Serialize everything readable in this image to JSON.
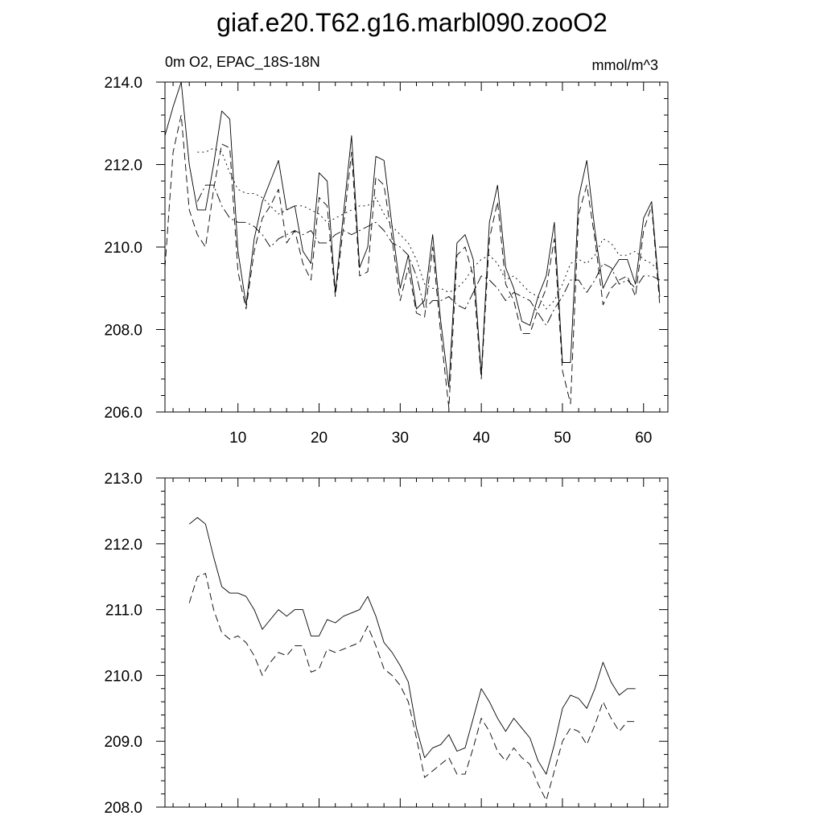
{
  "title": "giaf.e20.T62.g16.marbl090.zooO2",
  "chart_data": [
    {
      "type": "line",
      "left_label": "0m O2, EPAC_18S-18N",
      "right_label": "mmol/m^3",
      "xlim": [
        1,
        63
      ],
      "ylim": [
        206,
        214
      ],
      "xticks": [
        10,
        20,
        30,
        40,
        50,
        60
      ],
      "xtick_labels": [
        "10",
        "20",
        "30",
        "40",
        "50",
        "60"
      ],
      "yticks": [
        206,
        208,
        210,
        212,
        214
      ],
      "ytick_labels": [
        "206.0",
        "208.0",
        "210.0",
        "212.0",
        "214.0"
      ],
      "x_start": 1,
      "series": [
        {
          "dash": "solid",
          "values": [
            212.7,
            213.4,
            214.0,
            212.0,
            210.9,
            210.9,
            212.0,
            213.3,
            213.1,
            209.9,
            208.6,
            210.2,
            211.1,
            211.6,
            212.1,
            210.9,
            211.0,
            209.9,
            209.6,
            211.8,
            211.6,
            208.9,
            210.8,
            212.7,
            209.5,
            210.0,
            212.2,
            212.1,
            210.5,
            209.0,
            209.8,
            208.5,
            208.7,
            210.3,
            208.2,
            206.6,
            210.1,
            210.3,
            209.7,
            206.9,
            210.6,
            211.5,
            209.5,
            209.0,
            208.2,
            208.1,
            208.8,
            209.3,
            210.6,
            207.2,
            207.2,
            211.2,
            212.1,
            210.4,
            209.0,
            209.4,
            209.7,
            209.7,
            209.1,
            210.7,
            211.1,
            208.8
          ]
        },
        {
          "dash": "longdash",
          "values": [
            209.5,
            212.3,
            213.2,
            210.9,
            210.3,
            210.0,
            211.4,
            212.5,
            212.4,
            209.4,
            208.5,
            209.9,
            210.7,
            211.0,
            211.4,
            210.1,
            210.4,
            209.6,
            209.2,
            211.2,
            211.0,
            208.8,
            210.5,
            212.3,
            209.3,
            209.4,
            211.7,
            211.5,
            210.2,
            208.7,
            209.5,
            208.4,
            208.3,
            210.0,
            207.9,
            206.1,
            209.8,
            210.0,
            209.3,
            206.8,
            210.2,
            211.1,
            209.1,
            208.7,
            207.9,
            207.9,
            208.5,
            209.0,
            210.2,
            207.0,
            206.2,
            210.8,
            211.5,
            210.2,
            208.6,
            209.0,
            209.2,
            209.3,
            208.8,
            210.4,
            211.0,
            208.6
          ]
        },
        {
          "dash": "dashdot",
          "values": [
            null,
            null,
            null,
            null,
            211.1,
            211.5,
            211.5,
            211.0,
            210.7,
            210.6,
            210.6,
            210.5,
            210.3,
            210.0,
            210.2,
            210.3,
            210.4,
            210.3,
            210.4,
            210.1,
            210.1,
            210.3,
            210.4,
            210.3,
            210.4,
            210.5,
            210.6,
            210.4,
            210.1,
            210.0,
            209.8,
            209.3,
            208.5,
            208.7,
            208.7,
            208.8,
            208.6,
            208.5,
            208.9,
            209.3,
            209.2,
            209.0,
            208.7,
            208.9,
            208.8,
            208.7,
            208.4,
            208.1,
            208.5,
            208.8,
            209.2,
            209.2,
            208.9,
            209.2,
            209.6,
            209.5,
            209.1,
            209.2,
            209.0,
            209.3,
            209.3,
            209.2
          ]
        },
        {
          "dash": "dotted",
          "values": [
            null,
            null,
            null,
            null,
            212.3,
            212.3,
            212.4,
            212.3,
            211.8,
            211.4,
            211.3,
            211.3,
            211.2,
            211.0,
            210.8,
            210.9,
            211.0,
            211.0,
            210.9,
            210.8,
            210.6,
            210.7,
            210.8,
            210.9,
            211.0,
            211.0,
            211.2,
            210.8,
            210.5,
            210.3,
            210.1,
            209.7,
            209.1,
            209.0,
            209.0,
            208.9,
            209.0,
            209.2,
            209.5,
            209.7,
            209.8,
            209.6,
            209.2,
            209.3,
            209.1,
            208.9,
            208.8,
            208.5,
            208.7,
            209.1,
            209.6,
            209.7,
            209.6,
            209.8,
            210.2,
            210.1,
            209.8,
            209.8,
            209.9,
            209.7,
            209.6,
            209.4
          ]
        }
      ]
    },
    {
      "type": "line",
      "xlim": [
        1,
        63
      ],
      "ylim": [
        208,
        213
      ],
      "xticks": [
        10,
        20,
        30,
        40,
        50,
        60
      ],
      "yticks": [
        208,
        209,
        210,
        211,
        212,
        213
      ],
      "ytick_labels": [
        "208.0",
        "209.0",
        "210.0",
        "211.0",
        "212.0",
        "213.0"
      ],
      "x_start": 4,
      "series": [
        {
          "dash": "solid",
          "values": [
            212.3,
            212.4,
            212.3,
            211.8,
            211.35,
            211.25,
            211.25,
            211.2,
            211.0,
            210.7,
            210.85,
            211.0,
            210.9,
            211.0,
            211.0,
            210.6,
            210.6,
            210.85,
            210.8,
            210.9,
            210.95,
            211.0,
            211.2,
            210.9,
            210.5,
            210.35,
            210.15,
            209.9,
            209.2,
            208.75,
            208.9,
            208.95,
            209.1,
            208.85,
            208.9,
            209.35,
            209.8,
            209.6,
            209.35,
            209.15,
            209.35,
            209.2,
            209.05,
            208.7,
            208.5,
            208.95,
            209.5,
            209.7,
            209.65,
            209.5,
            209.8,
            210.2,
            209.9,
            209.7,
            209.8,
            209.8
          ]
        },
        {
          "dash": "longdash",
          "values": [
            211.1,
            211.5,
            211.55,
            211.0,
            210.65,
            210.55,
            210.6,
            210.5,
            210.3,
            210.0,
            210.2,
            210.35,
            210.3,
            210.45,
            210.45,
            210.05,
            210.1,
            210.4,
            210.35,
            210.4,
            210.45,
            210.5,
            210.75,
            210.45,
            210.1,
            210.0,
            209.85,
            209.6,
            209.05,
            208.45,
            208.55,
            208.65,
            208.75,
            208.5,
            208.5,
            208.9,
            209.35,
            209.15,
            208.85,
            208.7,
            208.9,
            208.75,
            208.65,
            208.35,
            208.1,
            208.55,
            209.0,
            209.2,
            209.15,
            208.95,
            209.25,
            209.6,
            209.35,
            209.15,
            209.3,
            209.3
          ]
        }
      ]
    }
  ]
}
